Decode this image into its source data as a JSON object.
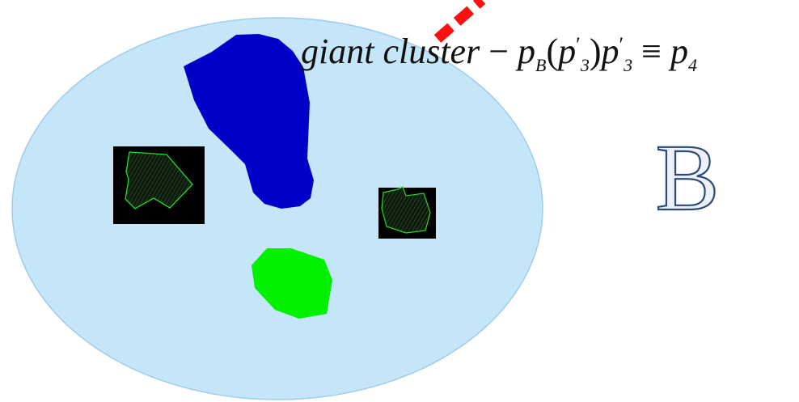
{
  "formula": {
    "text_part": "giant cluster",
    "minus": "−",
    "p": "p",
    "sub_B": "B",
    "lparen": "(",
    "rparen": ")",
    "prime": "′",
    "sub_3": "3",
    "equiv": "≡",
    "sub_4": "4"
  },
  "label_B": "B",
  "colors": {
    "ellipse_fill": "#c5e5f9",
    "ellipse_stroke": "#9fcde9",
    "giant_cluster": "#0000c8",
    "green_cluster": "#00f000",
    "dashed_line": "#ff1010",
    "box_bg": "#000000",
    "box_polygon": "#22dd22",
    "letter_fill": "#eef0f4",
    "letter_stroke": "#2a4a7a"
  }
}
